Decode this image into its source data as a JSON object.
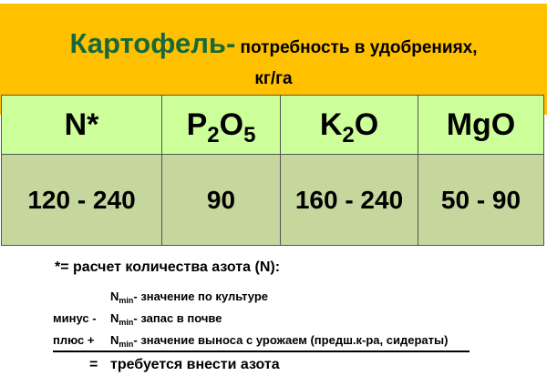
{
  "title": {
    "main": "Картофель-",
    "rest": " потребность в удобрениях,",
    "unit": "кг/га"
  },
  "table": {
    "headers": [
      {
        "base": "N*"
      },
      {
        "a": "P",
        "s1": "2",
        "b": "O",
        "s2": "5"
      },
      {
        "a": "K",
        "s1": "2",
        "b": "O"
      },
      {
        "base": "MgO"
      }
    ],
    "values": [
      "120 - 240",
      "90",
      "160 - 240",
      "50 - 90"
    ]
  },
  "footnote": {
    "head": "*= расчет количества азота (N):",
    "lines": [
      {
        "prefix": "",
        "n": "N",
        "sub": "min",
        "text": "- значение по культуре"
      },
      {
        "prefix": "минус -",
        "n": "N",
        "sub": "min",
        "text": "- запас в почве"
      },
      {
        "prefix": "плюс +",
        "n": "N",
        "sub": "min",
        "text": "- значение выноса с урожаем (предш.к-ра, сидераты)"
      }
    ],
    "result_sign": "=",
    "result": "требуется внести азота"
  },
  "colors": {
    "band": "#FFC000",
    "title": "#17693A",
    "header_row": "#CCFF99",
    "value_row": "#C6D79D"
  }
}
